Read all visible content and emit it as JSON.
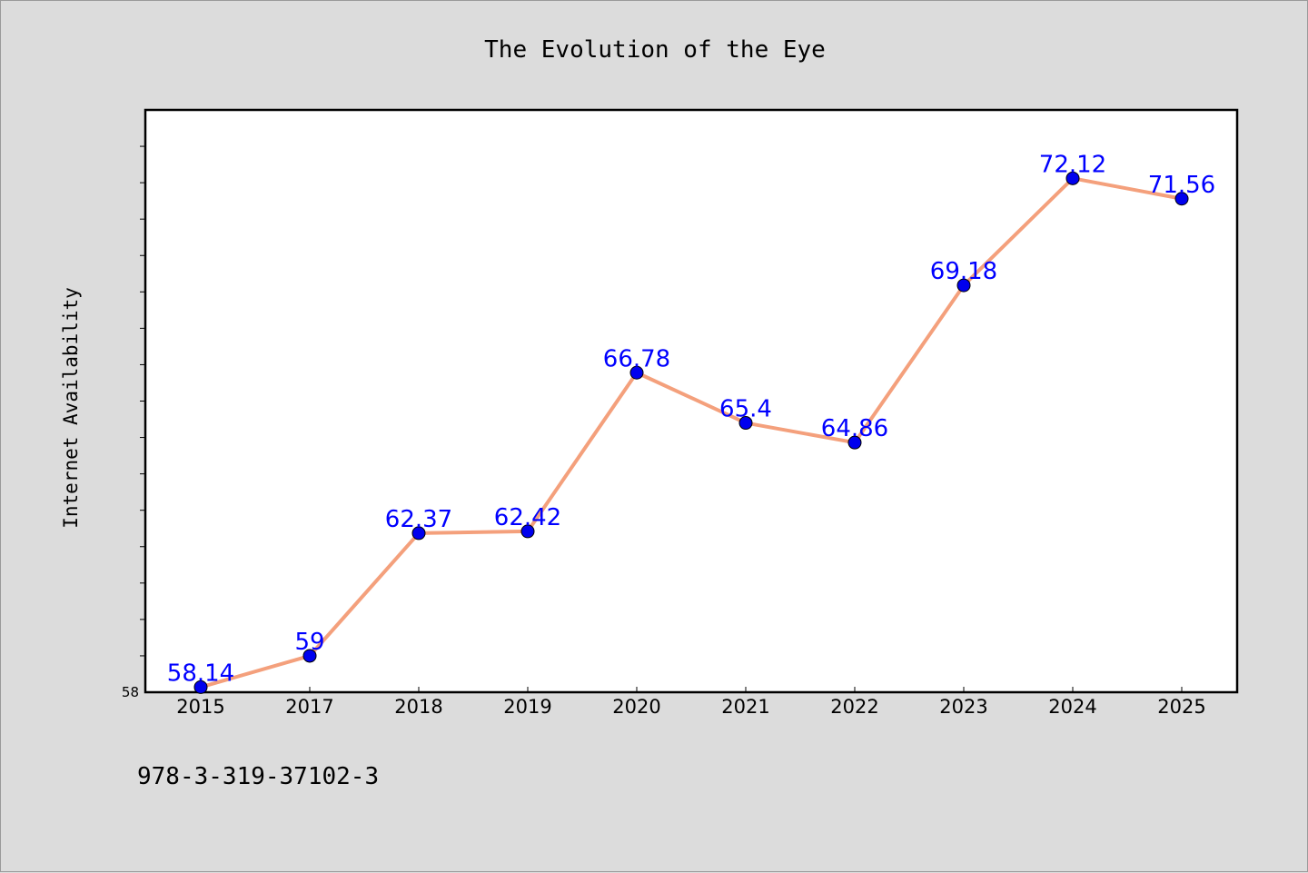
{
  "chart_data": {
    "type": "line",
    "title": "The Evolution of the Eye",
    "xlabel": "",
    "ylabel": "Internet Availability",
    "categories": [
      "2015",
      "2017",
      "2018",
      "2019",
      "2020",
      "2021",
      "2022",
      "2023",
      "2024",
      "2025"
    ],
    "series": [
      {
        "values": [
          58.14,
          59,
          62.37,
          62.42,
          66.78,
          65.4,
          64.86,
          69.18,
          72.12,
          71.56
        ]
      }
    ],
    "data_labels": [
      "58.14",
      "59",
      "62.37",
      "62.42",
      "66.78",
      "65.4",
      "64.86",
      "69.18",
      "72.12",
      "71.56"
    ],
    "ylim": [
      58,
      74
    ],
    "ytick_labels": [
      "58"
    ],
    "grid": false,
    "line_color": "#f4a07c",
    "marker_color": "#0000ee",
    "label_color": "#0000ff"
  },
  "footer": {
    "isbn": "978-3-319-37102-3"
  }
}
